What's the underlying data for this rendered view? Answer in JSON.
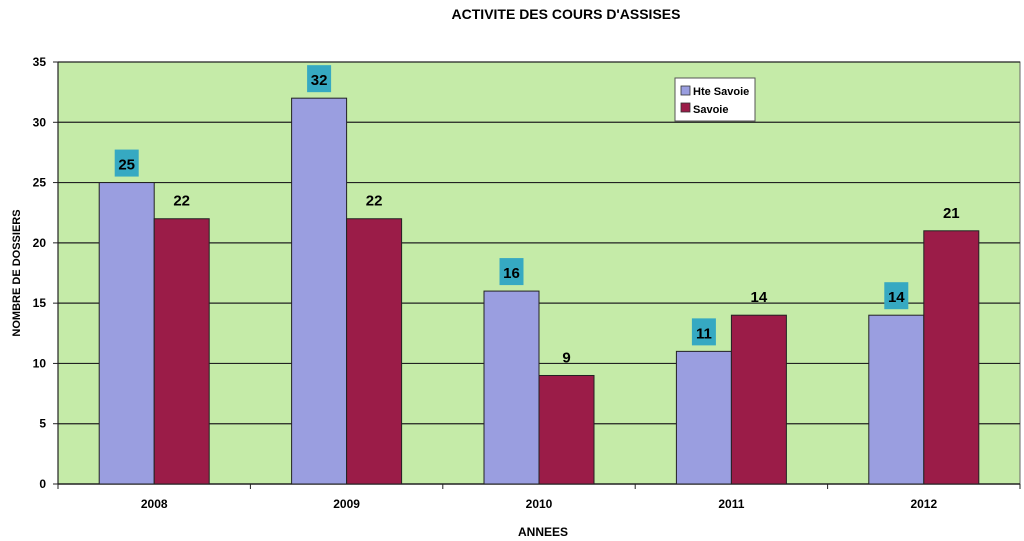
{
  "chart_data": {
    "type": "bar",
    "title": "ACTIVITE DES COURS D'ASSISES",
    "xlabel": "ANNEES",
    "ylabel": "NOMBRE DE DOSSIERS",
    "categories": [
      "2008",
      "2009",
      "2010",
      "2011",
      "2012"
    ],
    "series": [
      {
        "name": "Hte Savoie",
        "values": [
          25,
          32,
          16,
          11,
          14
        ],
        "color": "#9a9ee0"
      },
      {
        "name": "Savoie",
        "values": [
          22,
          22,
          9,
          14,
          21
        ],
        "color": "#9b1c48"
      }
    ],
    "ylim": [
      0,
      35
    ],
    "yticks": [
      "0",
      "5",
      "10",
      "15",
      "20",
      "25",
      "30",
      "35"
    ],
    "grid": true,
    "legend_position": "top-right",
    "plot_background": "#c5eba8",
    "label_highlight_color": "#36a9c2"
  }
}
